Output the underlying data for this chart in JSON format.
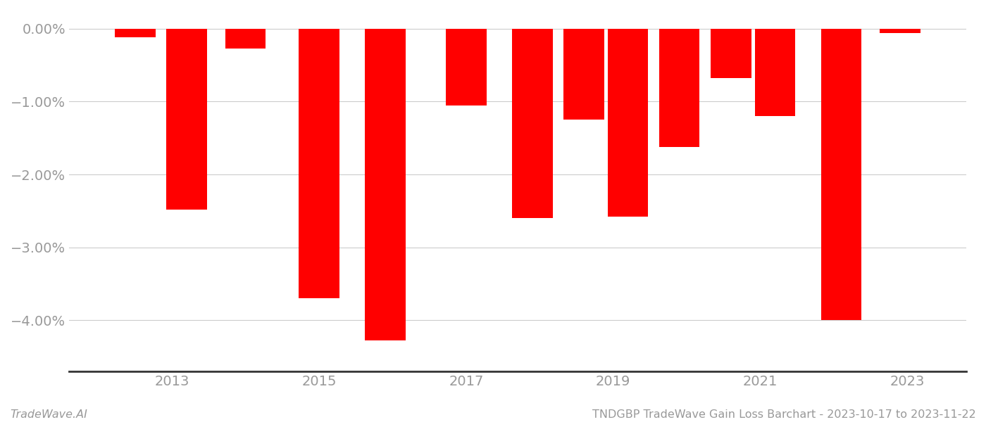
{
  "bars": [
    {
      "x": 2012.5,
      "value": -0.12
    },
    {
      "x": 2013.2,
      "value": -2.48
    },
    {
      "x": 2014.0,
      "value": -0.27
    },
    {
      "x": 2015.0,
      "value": -3.7
    },
    {
      "x": 2015.9,
      "value": -4.28
    },
    {
      "x": 2017.0,
      "value": -1.05
    },
    {
      "x": 2017.9,
      "value": -2.6
    },
    {
      "x": 2018.6,
      "value": -1.25
    },
    {
      "x": 2019.2,
      "value": -2.58
    },
    {
      "x": 2019.9,
      "value": -1.62
    },
    {
      "x": 2020.6,
      "value": -0.68
    },
    {
      "x": 2021.2,
      "value": -1.2
    },
    {
      "x": 2022.1,
      "value": -4.0
    },
    {
      "x": 2022.9,
      "value": -0.06
    }
  ],
  "bar_color": "#ff0000",
  "bar_width": 0.55,
  "ylim": [
    -4.7,
    0.22
  ],
  "yticks": [
    0.0,
    -1.0,
    -2.0,
    -3.0,
    -4.0
  ],
  "ytick_labels": [
    "0.00%",
    "−1.00%",
    "−2.00%",
    "−3.00%",
    "−4.00%"
  ],
  "xticks": [
    2013,
    2015,
    2017,
    2019,
    2021,
    2023
  ],
  "xlim": [
    2011.6,
    2023.8
  ],
  "grid_color": "#cccccc",
  "spine_color": "#333333",
  "bg_color": "#ffffff",
  "footer_left": "TradeWave.AI",
  "footer_right": "TNDGBP TradeWave Gain Loss Barchart - 2023-10-17 to 2023-11-22",
  "footer_fontsize": 11.5,
  "tick_fontsize": 14,
  "tick_color": "#999999"
}
